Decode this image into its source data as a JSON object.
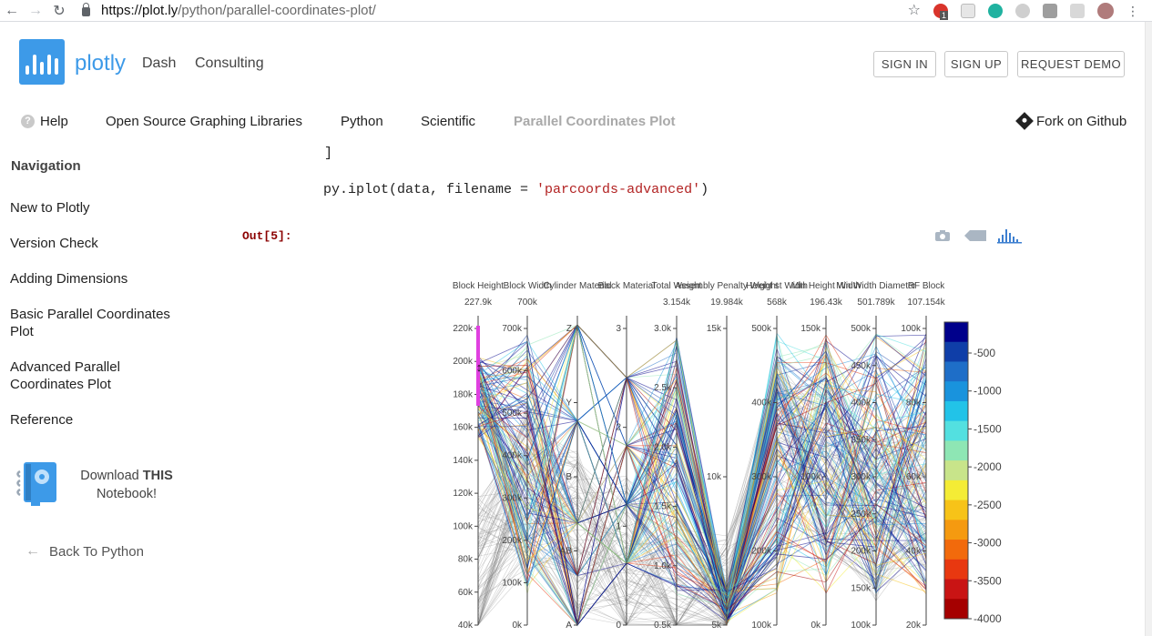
{
  "browser": {
    "url_host": "https://plot.ly",
    "url_path": "/python/parallel-coordinates-plot/",
    "extension_badge": "1"
  },
  "header": {
    "brand": "plotly",
    "nav": [
      "Dash",
      "Consulting"
    ],
    "buttons": {
      "sign_in": "SIGN IN",
      "sign_up": "SIGN UP",
      "request_demo": "REQUEST DEMO"
    }
  },
  "breadcrumb": {
    "help": "Help",
    "items": [
      "Open Source Graphing Libraries",
      "Python",
      "Scientific",
      "Parallel Coordinates Plot"
    ],
    "fork": "Fork on Github"
  },
  "sidebar": {
    "heading": "Navigation",
    "items": [
      "New to Plotly",
      "Version Check",
      "Adding Dimensions",
      "Basic Parallel Coordinates Plot",
      "Advanced Parallel Coordinates Plot",
      "Reference"
    ],
    "download_prefix": "Download ",
    "download_bold": "THIS",
    "download_suffix": "Notebook!",
    "back": "Back To Python"
  },
  "code": {
    "bracket": "]",
    "line_prefix": "py.iplot(data, filename = ",
    "line_string": "'parcoords-advanced'",
    "line_suffix": ")",
    "out_label": "Out[5]:"
  },
  "icons": {
    "camera": "camera-icon",
    "tag": "tag-icon",
    "plotly_logo": "plotly-bars-icon"
  },
  "colors": {
    "brand": "#3d9ae8",
    "brush": "#e040e0",
    "line_gray": "#7a7a7a"
  },
  "chart_data": {
    "type": "parcoords",
    "dimensions": [
      {
        "label": "Block Height",
        "range_label": "227.9k",
        "ticks": [
          "220k",
          "200k",
          "180k",
          "160k",
          "140k",
          "120k",
          "100k",
          "80k",
          "60k",
          "40k"
        ],
        "constraint": [
          182,
          214
        ]
      },
      {
        "label": "Block Width",
        "range_label": "700k",
        "ticks": [
          "700k",
          "600k",
          "500k",
          "400k",
          "300k",
          "200k",
          "100k",
          "0k"
        ]
      },
      {
        "label": "Cylinder Material",
        "range_label": "",
        "ticks": [
          "Z",
          "Y",
          "B",
          "AB",
          "A"
        ]
      },
      {
        "label": "Block Material",
        "range_label": "",
        "ticks": [
          "3",
          "2",
          "1",
          "0"
        ]
      },
      {
        "label": "Total Weight",
        "range_label": "3.154k",
        "ticks": [
          "3.0k",
          "2.5k",
          "2.0k",
          "1.5k",
          "1.0k",
          "0.5k"
        ]
      },
      {
        "label": "Assembly Penalty Weight",
        "range_label": "19.984k",
        "ticks": [
          "15k",
          "10k",
          "5k"
        ]
      },
      {
        "label": "Height st Width",
        "range_label": "568k",
        "ticks": [
          "500k",
          "400k",
          "300k",
          "200k",
          "100k"
        ]
      },
      {
        "label": "Min Height Width",
        "range_label": "196.43k",
        "ticks": [
          "150k",
          "100k",
          "0k"
        ]
      },
      {
        "label": "Min Width Diameter",
        "range_label": "501.789k",
        "ticks": [
          "500k",
          "450k",
          "400k",
          "350k",
          "300k",
          "250k",
          "200k",
          "150k",
          "100k"
        ]
      },
      {
        "label": "RF Block",
        "range_label": "107.154k",
        "ticks": [
          "100k",
          "80k",
          "60k",
          "40k",
          "20k"
        ]
      }
    ],
    "colorbar": {
      "ticks": [
        "-500",
        "-1000",
        "-1500",
        "-2000",
        "-2500",
        "-3000",
        "-3500",
        "-4000"
      ],
      "colors": [
        "#00008b",
        "#0f3ea8",
        "#1e6ec8",
        "#1993dd",
        "#22c3e8",
        "#53e0e0",
        "#8ee6b4",
        "#c8e48a",
        "#f4ec35",
        "#f7c318",
        "#f59a10",
        "#f26a0c",
        "#e83810",
        "#c91414",
        "#a50000"
      ]
    }
  }
}
